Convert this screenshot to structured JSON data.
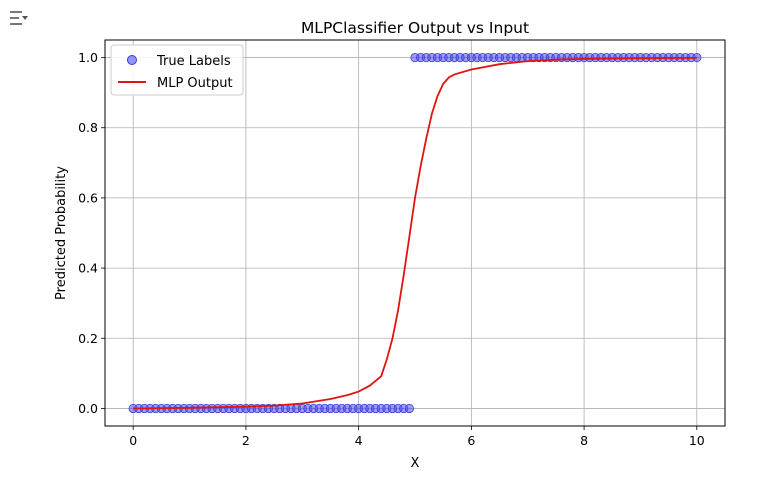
{
  "toolbar": {
    "icon": "filter-settings-icon"
  },
  "chart_data": {
    "type": "scatter",
    "title": "MLPClassifier Output vs Input",
    "xlabel": "X",
    "ylabel": "Predicted Probability",
    "xlim": [
      -0.5,
      10.5
    ],
    "ylim": [
      -0.05,
      1.05
    ],
    "xticks": [
      0,
      2,
      4,
      6,
      8,
      10
    ],
    "yticks": [
      0.0,
      0.2,
      0.4,
      0.6,
      0.8,
      1.0
    ],
    "xtick_labels": [
      "0",
      "2",
      "4",
      "6",
      "8",
      "10"
    ],
    "ytick_labels": [
      "0.0",
      "0.2",
      "0.4",
      "0.6",
      "0.8",
      "1.0"
    ],
    "grid": true,
    "legend_position": "top-left",
    "series": [
      {
        "name": "True Labels",
        "kind": "scatter",
        "color": "#4f4ff2",
        "x": [
          0.0,
          0.1,
          0.2,
          0.3,
          0.4,
          0.5,
          0.6,
          0.7,
          0.8,
          0.9,
          1.0,
          1.1,
          1.2,
          1.3,
          1.4,
          1.5,
          1.6,
          1.7,
          1.8,
          1.9,
          2.0,
          2.1,
          2.2,
          2.3,
          2.4,
          2.5,
          2.6,
          2.7,
          2.8,
          2.9,
          3.0,
          3.1,
          3.2,
          3.3,
          3.4,
          3.5,
          3.6,
          3.7,
          3.8,
          3.9,
          4.0,
          4.1,
          4.2,
          4.3,
          4.4,
          4.5,
          4.6,
          4.7,
          4.8,
          4.9,
          5.0,
          5.1,
          5.2,
          5.3,
          5.4,
          5.5,
          5.6,
          5.7,
          5.8,
          5.9,
          6.0,
          6.1,
          6.2,
          6.3,
          6.4,
          6.5,
          6.6,
          6.7,
          6.8,
          6.9,
          7.0,
          7.1,
          7.2,
          7.3,
          7.4,
          7.5,
          7.6,
          7.7,
          7.8,
          7.9,
          8.0,
          8.1,
          8.2,
          8.3,
          8.4,
          8.5,
          8.6,
          8.7,
          8.8,
          8.9,
          9.0,
          9.1,
          9.2,
          9.3,
          9.4,
          9.5,
          9.6,
          9.7,
          9.8,
          9.9,
          10.0
        ],
        "y": [
          0,
          0,
          0,
          0,
          0,
          0,
          0,
          0,
          0,
          0,
          0,
          0,
          0,
          0,
          0,
          0,
          0,
          0,
          0,
          0,
          0,
          0,
          0,
          0,
          0,
          0,
          0,
          0,
          0,
          0,
          0,
          0,
          0,
          0,
          0,
          0,
          0,
          0,
          0,
          0,
          0,
          0,
          0,
          0,
          0,
          0,
          0,
          0,
          0,
          0,
          1,
          1,
          1,
          1,
          1,
          1,
          1,
          1,
          1,
          1,
          1,
          1,
          1,
          1,
          1,
          1,
          1,
          1,
          1,
          1,
          1,
          1,
          1,
          1,
          1,
          1,
          1,
          1,
          1,
          1,
          1,
          1,
          1,
          1,
          1,
          1,
          1,
          1,
          1,
          1,
          1,
          1,
          1,
          1,
          1,
          1,
          1,
          1,
          1,
          1,
          1
        ]
      },
      {
        "name": "MLP Output",
        "kind": "line",
        "color": "#e0140f",
        "x": [
          0.0,
          1.0,
          2.0,
          2.5,
          3.0,
          3.5,
          3.8,
          4.0,
          4.2,
          4.4,
          4.5,
          4.6,
          4.7,
          4.8,
          4.9,
          5.0,
          5.1,
          5.2,
          5.3,
          5.4,
          5.5,
          5.6,
          5.7,
          6.0,
          6.5,
          7.0,
          7.5,
          8.0,
          9.0,
          10.0
        ],
        "y": [
          0.0,
          0.002,
          0.005,
          0.008,
          0.014,
          0.027,
          0.038,
          0.048,
          0.065,
          0.092,
          0.14,
          0.2,
          0.28,
          0.38,
          0.49,
          0.6,
          0.69,
          0.77,
          0.84,
          0.89,
          0.925,
          0.943,
          0.952,
          0.966,
          0.981,
          0.99,
          0.994,
          0.996,
          0.998,
          0.999
        ]
      }
    ]
  }
}
